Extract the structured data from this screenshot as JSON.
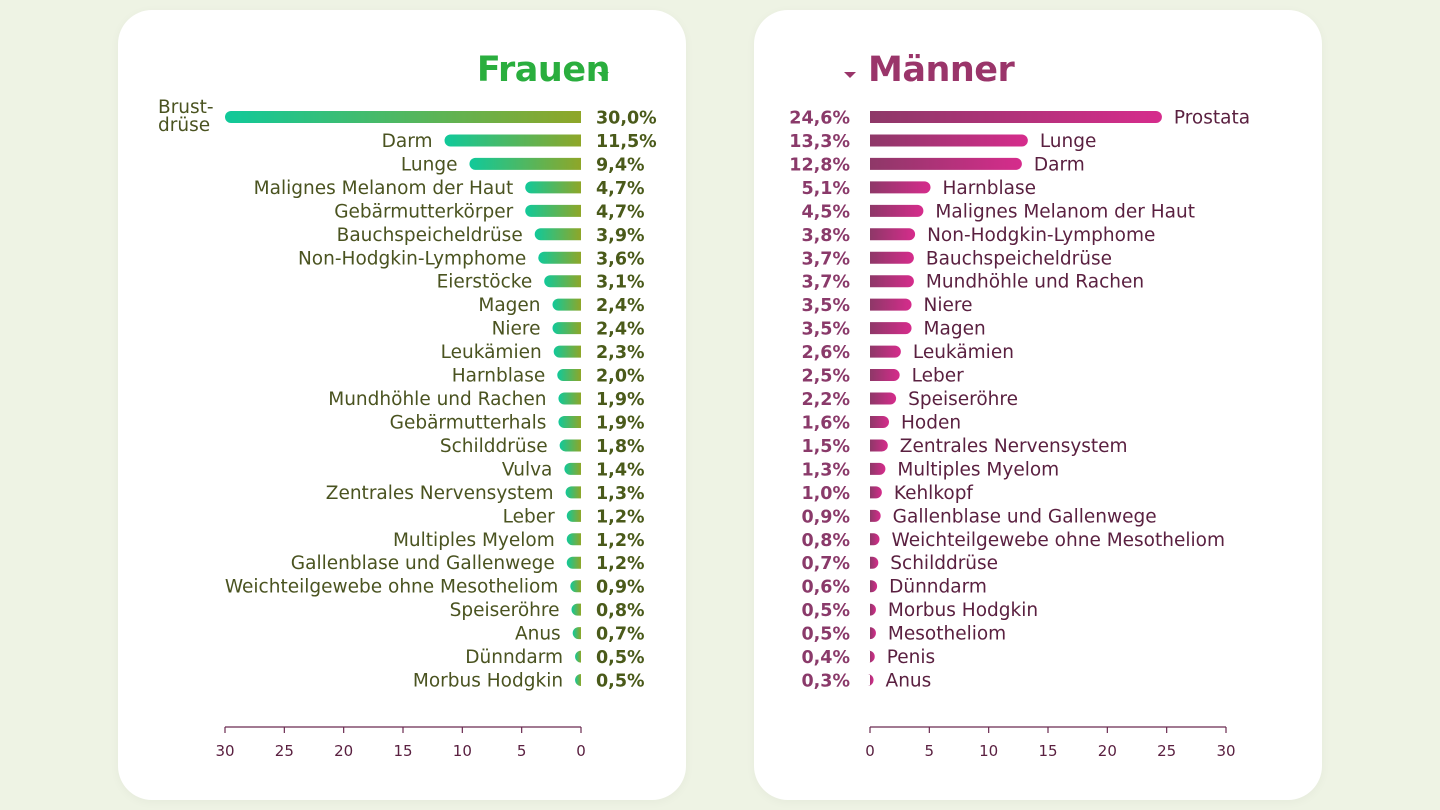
{
  "chart_data": [
    {
      "type": "bar",
      "orientation": "horizontal",
      "title": "Frauen",
      "unit": "%",
      "xlim": [
        0,
        30
      ],
      "axis_direction": "reversed",
      "xticks": [
        30,
        25,
        20,
        15,
        10,
        5,
        0
      ],
      "grid": false,
      "colors": {
        "bar_start": "#10c99a",
        "bar_end": "#8fa628",
        "title": "#2aae3e",
        "label": "#4a5320",
        "value": "#4a5a1a"
      },
      "categories": [
        "Brust-\ndrüse",
        "Darm",
        "Lunge",
        "Malignes Melanom der Haut",
        "Gebärmutterkörper",
        "Bauchspeicheldrüse",
        "Non-Hodgkin-Lymphome",
        "Eierstöcke",
        "Magen",
        "Niere",
        "Leukämien",
        "Harnblase",
        "Mundhöhle und Rachen",
        "Gebärmutterhals",
        "Schilddrüse",
        "Vulva",
        "Zentrales Nervensystem",
        "Leber",
        "Multiples Myelom",
        "Gallenblase und Gallenwege",
        "Weichteilgewebe ohne Mesotheliom",
        "Speiseröhre",
        "Anus",
        "Dünndarm",
        "Morbus Hodgkin"
      ],
      "values": [
        30.0,
        11.5,
        9.4,
        4.7,
        4.7,
        3.9,
        3.6,
        3.1,
        2.4,
        2.4,
        2.3,
        2.0,
        1.9,
        1.9,
        1.8,
        1.4,
        1.3,
        1.2,
        1.2,
        1.2,
        0.9,
        0.8,
        0.7,
        0.5,
        0.5
      ],
      "value_labels": [
        "30,0%",
        "11,5%",
        "9,4%",
        "4,7%",
        "4,7%",
        "3,9%",
        "3,6%",
        "3,1%",
        "2,4%",
        "2,4%",
        "2,3%",
        "2,0%",
        "1,9%",
        "1,9%",
        "1,8%",
        "1,4%",
        "1,3%",
        "1,2%",
        "1,2%",
        "1,2%",
        "0,9%",
        "0,8%",
        "0,7%",
        "0,5%",
        "0,5%"
      ]
    },
    {
      "type": "bar",
      "orientation": "horizontal",
      "title": "Männer",
      "unit": "%",
      "xlim": [
        0,
        30
      ],
      "xticks": [
        0,
        5,
        10,
        15,
        20,
        25,
        30
      ],
      "grid": false,
      "colors": {
        "bar_start": "#8e3868",
        "bar_end": "#d62c8c",
        "title": "#9a356a",
        "label": "#5a2040",
        "value": "#8a3a6a"
      },
      "categories": [
        "Prostata",
        "Lunge",
        "Darm",
        "Harnblase",
        "Malignes Melanom der Haut",
        "Non-Hodgkin-Lymphome",
        "Bauchspeicheldrüse",
        "Mundhöhle und Rachen",
        "Niere",
        "Magen",
        "Leukämien",
        "Leber",
        "Speiseröhre",
        "Hoden",
        "Zentrales Nervensystem",
        "Multiples Myelom",
        "Kehlkopf",
        "Gallenblase und Gallenwege",
        "Weichteilgewebe ohne Mesotheliom",
        "Schilddrüse",
        "Dünndarm",
        "Morbus Hodgkin",
        "Mesotheliom",
        "Penis",
        "Anus"
      ],
      "values": [
        24.6,
        13.3,
        12.8,
        5.1,
        4.5,
        3.8,
        3.7,
        3.7,
        3.5,
        3.5,
        2.6,
        2.5,
        2.2,
        1.6,
        1.5,
        1.3,
        1.0,
        0.9,
        0.8,
        0.7,
        0.6,
        0.5,
        0.5,
        0.4,
        0.3
      ],
      "value_labels": [
        "24,6%",
        "13,3%",
        "12,8%",
        "5,1%",
        "4,5%",
        "3,8%",
        "3,7%",
        "3,7%",
        "3,5%",
        "3,5%",
        "2,6%",
        "2,5%",
        "2,2%",
        "1,6%",
        "1,5%",
        "1,3%",
        "1,0%",
        "0,9%",
        "0,8%",
        "0,7%",
        "0,6%",
        "0,5%",
        "0,5%",
        "0,4%",
        "0,3%"
      ]
    }
  ]
}
